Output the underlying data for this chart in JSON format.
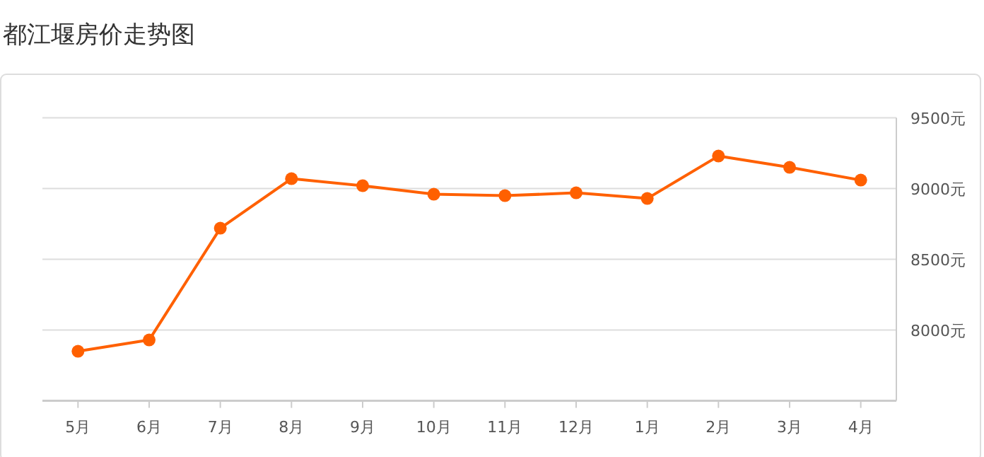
{
  "chart_data": {
    "type": "line",
    "title": "都江堰房价走势图",
    "categories": [
      "5月",
      "6月",
      "7月",
      "8月",
      "9月",
      "10月",
      "11月",
      "12月",
      "1月",
      "2月",
      "3月",
      "4月"
    ],
    "series": [
      {
        "color": "#ff6000",
        "values": [
          7850,
          7930,
          8720,
          9070,
          9020,
          8960,
          8950,
          8970,
          8930,
          9230,
          9150,
          9060
        ]
      }
    ],
    "ylim": [
      7500,
      9500
    ],
    "yticks": [
      {
        "value": 8000,
        "label": "8000元"
      },
      {
        "value": 8500,
        "label": "8500元"
      },
      {
        "value": 9000,
        "label": "9000元"
      },
      {
        "value": 9500,
        "label": "9500元"
      }
    ],
    "grid": "y",
    "marker": "circle",
    "line_style": "solid"
  }
}
